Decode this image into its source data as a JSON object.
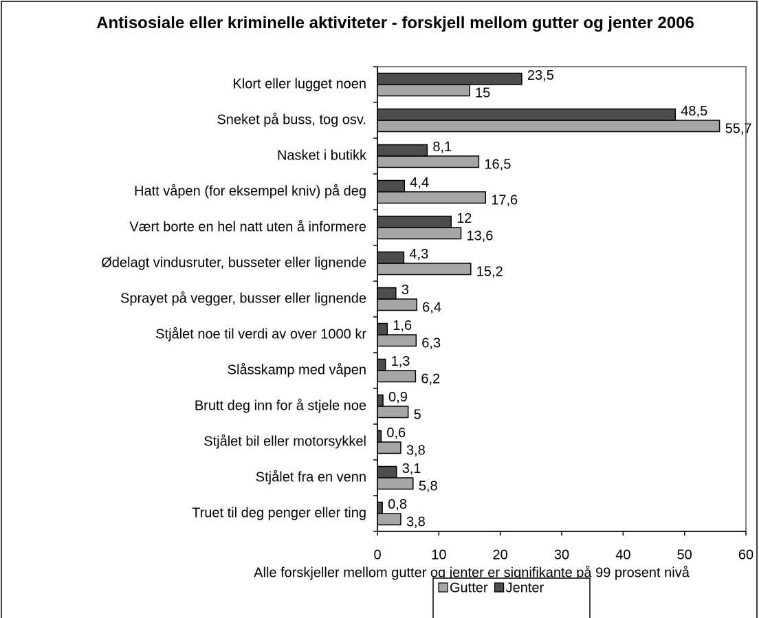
{
  "chart_data": {
    "type": "hbar",
    "title": "Antisosiale eller kriminelle aktiviteter - forskjell mellom gutter og jenter 2006",
    "x_label": "Alle forskjeller mellom gutter og jenter er signifikante på 99 prosent nivå",
    "categories": [
      "Klort eller lugget noen",
      "Sneket på buss, tog osv.",
      "Nasket i butikk",
      "Hatt våpen (for eksempel kniv) på deg",
      "Vært borte en hel natt uten å informere",
      "Ødelagt vindusruter, busseter eller lignende",
      "Sprayet på vegger, busser eller lignende",
      "Stjålet noe til verdi av over 1000 kr",
      "Slåsskamp med våpen",
      "Brutt deg inn for å stjele noe",
      "Stjålet bil eller motorsykkel",
      "Stjålet fra en venn",
      "Truet til deg penger eller ting"
    ],
    "series": [
      {
        "name": "Gutter",
        "color": "#a6a6a6",
        "values": [
          15,
          55.7,
          16.5,
          17.6,
          13.6,
          15.2,
          6.4,
          6.3,
          6.2,
          5,
          3.8,
          5.8,
          3.8
        ],
        "value_labels": [
          "15",
          "55,7",
          "16,5",
          "17,6",
          "13,6",
          "15,2",
          "6,4",
          "6,3",
          "6,2",
          "5",
          "3,8",
          "5,8",
          "3,8"
        ]
      },
      {
        "name": "Jenter",
        "color": "#4d4d4d",
        "values": [
          23.5,
          48.5,
          8.1,
          4.4,
          12,
          4.3,
          3,
          1.6,
          1.3,
          0.9,
          0.6,
          3.1,
          0.8
        ],
        "value_labels": [
          "23,5",
          "48,5",
          "8,1",
          "4,4",
          "12",
          "4,3",
          "3",
          "1,6",
          "1,3",
          "0,9",
          "0,6",
          "3,1",
          "0,8"
        ]
      }
    ],
    "xlim": [
      0,
      60
    ],
    "xticks": [
      0,
      10,
      20,
      30,
      40,
      50,
      60
    ],
    "legend": "bottom"
  }
}
